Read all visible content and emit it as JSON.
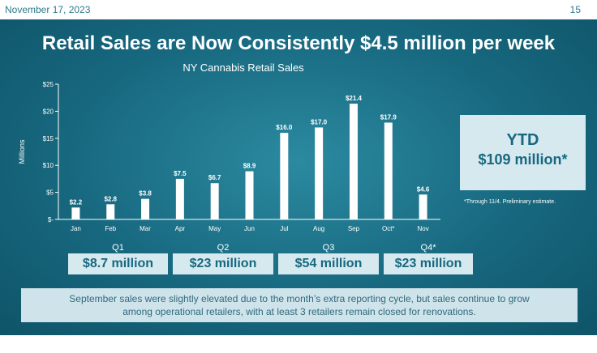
{
  "header": {
    "date": "November 17, 2023",
    "page_number": "15"
  },
  "slide": {
    "title": "Retail Sales are Now Consistently $4.5 million per week",
    "ytd": {
      "label": "YTD",
      "value": "$109 million*",
      "note": "*Through 11/4. Preliminary estimate."
    },
    "quarters": [
      {
        "label": "Q1",
        "value": "$8.7 million"
      },
      {
        "label": "Q2",
        "value": "$23 million"
      },
      {
        "label": "Q3",
        "value": "$54 million"
      },
      {
        "label": "Q4*",
        "value": "$23 million"
      }
    ],
    "footnote_line1": "September sales were slightly elevated due to the month’s extra reporting cycle, but sales continue to grow",
    "footnote_line2": "among operational retailers, with at least 3 retailers remain closed for renovations."
  },
  "colors": {
    "background": "#17687f",
    "bar": "#ffffff",
    "box": "#d6e9ef",
    "text": "#ffffff"
  },
  "chart_data": {
    "type": "bar",
    "title": "NY Cannabis Retail Sales",
    "ylabel": "Millions",
    "xlabel": "",
    "categories": [
      "Jan",
      "Feb",
      "Mar",
      "Apr",
      "May",
      "Jun",
      "Jul",
      "Aug",
      "Sep",
      "Oct*",
      "Nov"
    ],
    "values": [
      2.2,
      2.8,
      3.8,
      7.5,
      6.7,
      8.9,
      16.0,
      17.0,
      21.4,
      17.9,
      4.6
    ],
    "value_labels": [
      "$2.2",
      "$2.8",
      "$3.8",
      "$7.5",
      "$6.7",
      "$8.9",
      "$16.0",
      "$17.0",
      "$21.4",
      "$17.9",
      "$4.6"
    ],
    "yticks": [
      0,
      5,
      10,
      15,
      20,
      25
    ],
    "ytick_labels": [
      "$-",
      "$5",
      "$10",
      "$15",
      "$20",
      "$25"
    ],
    "ylim": [
      0,
      25
    ],
    "grid": false,
    "legend": "none"
  },
  "nav_icons": [
    "prev-icon",
    "play-icon",
    "pen-icon",
    "slides-icon",
    "zoom-icon",
    "more-icon",
    "next-icon"
  ]
}
